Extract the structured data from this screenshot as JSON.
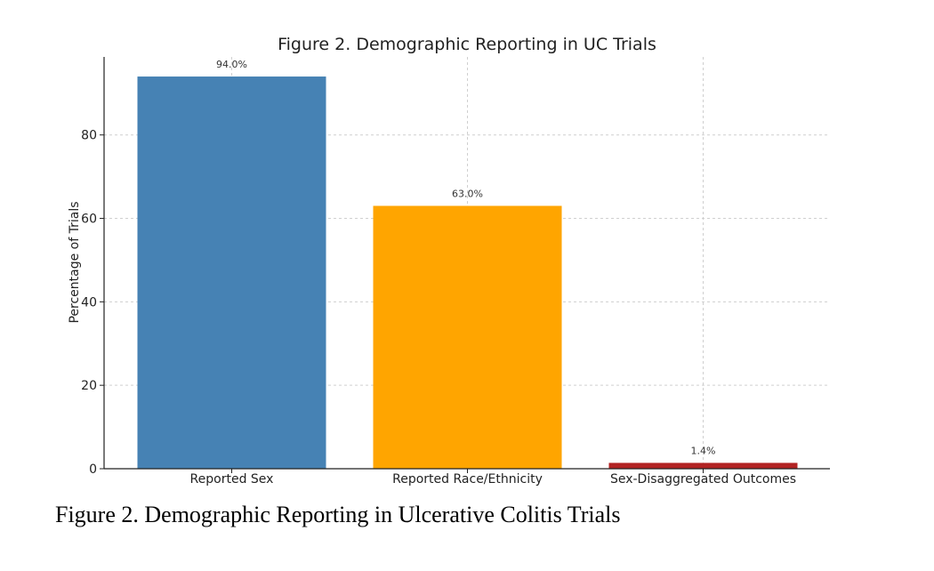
{
  "caption": "Figure 2. Demographic Reporting in Ulcerative Colitis Trials",
  "chart_data": {
    "type": "bar",
    "title": "Figure 2. Demographic Reporting in UC Trials",
    "xlabel": "",
    "ylabel": "Percentage of Trials",
    "categories": [
      "Reported Sex",
      "Reported Race/Ethnicity",
      "Sex-Disaggregated Outcomes"
    ],
    "values": [
      94.0,
      63.0,
      1.4
    ],
    "data_labels": [
      "94.0%",
      "63.0%",
      "1.4%"
    ],
    "colors": [
      "#4682b4",
      "#ffa500",
      "#b22222"
    ],
    "ylim": [
      0,
      98.7
    ],
    "yticks": [
      0,
      20,
      40,
      60,
      80
    ],
    "grid": true
  }
}
